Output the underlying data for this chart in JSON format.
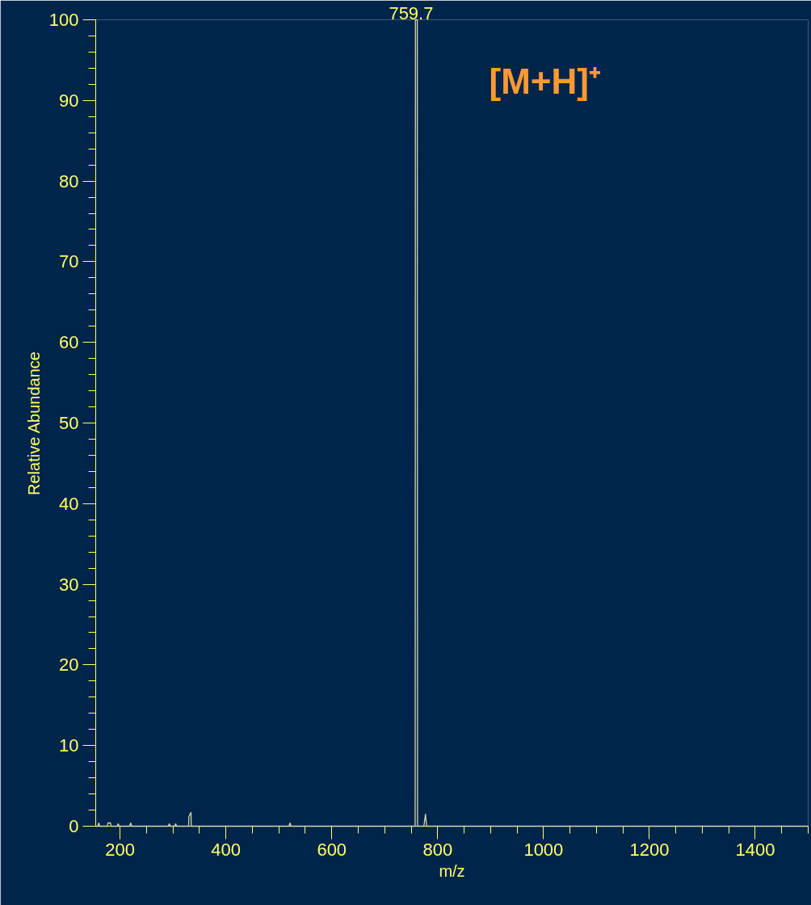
{
  "chart_data": {
    "type": "line",
    "xlabel": "m/z",
    "ylabel": "Relative Abundance",
    "annotations": [
      "[M+H]⁺",
      {
        "text": "759.7",
        "x": 759.7,
        "y": 100
      }
    ],
    "x": [
      154,
      158,
      159.8,
      161.5,
      176,
      177,
      182,
      183,
      194.5,
      196.5,
      198.5,
      218,
      220,
      222,
      291,
      293,
      295,
      303,
      305,
      307,
      329.5,
      330,
      334,
      334.5,
      519,
      521,
      523,
      757.5,
      758,
      759.7,
      761.5,
      762,
      774,
      777,
      779,
      1500
    ],
    "series": [
      {
        "color": "#d8d8a8",
        "values": [
          0,
          0,
          0.4,
          0,
          0,
          0.4,
          0.4,
          0,
          0,
          0.3,
          0,
          0,
          0.4,
          0,
          0,
          0.3,
          0,
          0,
          0.3,
          0,
          0,
          1.2,
          1.7,
          0,
          0,
          0.4,
          0,
          0,
          100,
          100,
          100,
          0,
          0,
          1.5,
          0,
          0
        ]
      }
    ],
    "xlim": [
      154,
      1500
    ],
    "ylim": [
      0,
      100
    ],
    "xticks": [
      200,
      400,
      600,
      800,
      1000,
      1200,
      1400
    ],
    "yticks": [
      0,
      10,
      20,
      30,
      40,
      50,
      60,
      70,
      80,
      90,
      100
    ],
    "grid": false,
    "marker": "none",
    "line_style": "solid"
  }
}
